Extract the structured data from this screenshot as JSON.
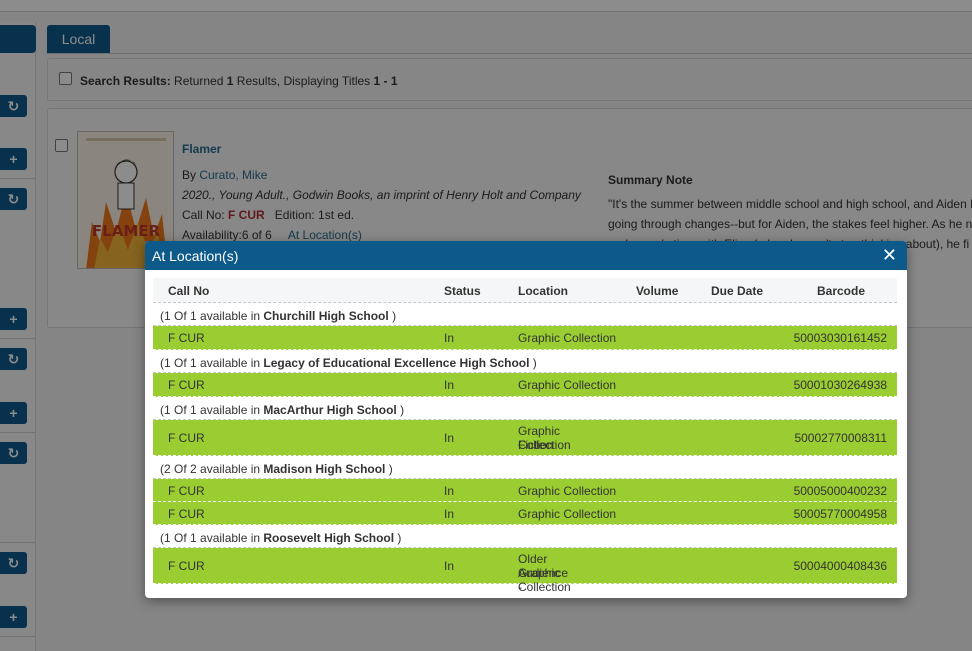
{
  "background": {
    "tab_label": "Local",
    "results": {
      "prefix": "Search Results:",
      "text_a": " Returned ",
      "count": "1",
      "text_b": " Results, Displaying Titles ",
      "range": "1 - 1"
    },
    "record": {
      "title": "Flamer",
      "by_prefix": "By ",
      "author": "Curato, Mike",
      "pub_line": "2020., Young Adult., Godwin Books, an imprint of Henry Holt and Company",
      "call_no_label": "Call No: ",
      "call_no": "F CUR",
      "edition": "Edition: 1st ed.",
      "availability_label": "Availability:",
      "availability": "6 of 6",
      "at_location_link": "At Location(s)",
      "cover_text": "FLAMER",
      "summary_label": "Summary Note",
      "summary_lines": [
        "\"It's the summer between middle school and high school, and Aiden N",
        "going through changes--but for Aiden, the stakes feel higher. As he n",
        "and spends time with Elias (a boy he can't stop thinking about), he fi"
      ]
    },
    "side_buttons": [
      "↻",
      "+",
      "↻",
      "+",
      "↻",
      "+",
      "↻",
      "↻",
      "+"
    ]
  },
  "modal": {
    "title": "At Location(s)",
    "close_glyph": "✕",
    "columns": [
      "Call No",
      "Status",
      "Location",
      "Volume",
      "Due Date",
      "Barcode"
    ],
    "groups": [
      {
        "pre": "(1 Of 1 available in ",
        "school": "Churchill High School",
        "post": " )",
        "items": [
          {
            "call_no": "F CUR",
            "status": "In",
            "location": "Graphic Collection",
            "barcode": "50003030161452"
          }
        ]
      },
      {
        "pre": "(1 Of 1 available in ",
        "school": "Legacy of Educational Excellence High School",
        "post": " )",
        "items": [
          {
            "call_no": "F CUR",
            "status": "In",
            "location": "Graphic Collection",
            "barcode": "50001030264938"
          }
        ]
      },
      {
        "pre": "(1 Of 1 available in ",
        "school": "MacArthur High School",
        "post": " )",
        "items": [
          {
            "call_no": "F CUR",
            "status": "In",
            "location": "Graphic Fiction Collection",
            "location_l1": "Graphic Fiction",
            "location_l2": "Collection",
            "barcode": "50002770008311"
          }
        ]
      },
      {
        "pre": "(2 Of 2 available in ",
        "school": "Madison High School",
        "post": " )",
        "items": [
          {
            "call_no": "F CUR",
            "status": "In",
            "location": "Graphic Collection",
            "barcode": "50005000400232"
          },
          {
            "call_no": "F CUR",
            "status": "In",
            "location": "Graphic Collection",
            "barcode": "50005770004958"
          }
        ]
      },
      {
        "pre": "(1 Of 1 available in ",
        "school": "Roosevelt High School",
        "post": " )",
        "items": [
          {
            "call_no": "F CUR",
            "status": "In",
            "location": "Older Audience - Graphic Collection",
            "location_l1": "Older Audience -",
            "location_l2": "Graphic Collection",
            "barcode": "50004000408436"
          }
        ]
      }
    ]
  },
  "colors": {
    "primary": "#0d5a8a",
    "available_row": "#9acd32",
    "link": "#2a6b8f",
    "call_no_red": "#b03030"
  }
}
